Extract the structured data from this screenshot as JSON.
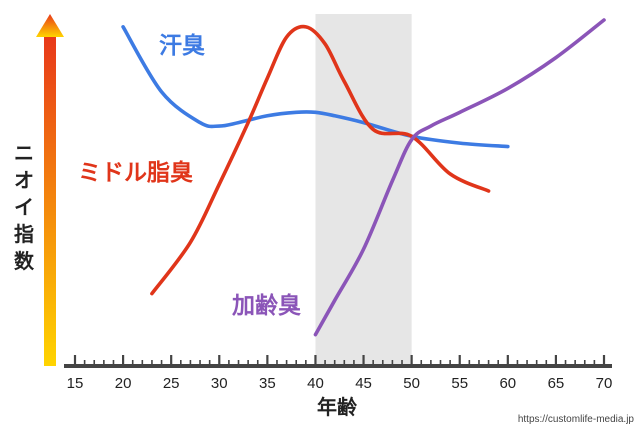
{
  "chart_data": {
    "type": "line",
    "title": "",
    "xlabel": "年齢",
    "ylabel": "ニオイ指数",
    "xlim": [
      15,
      70
    ],
    "ylim": [
      0,
      100
    ],
    "x_ticks": [
      15,
      20,
      25,
      30,
      35,
      40,
      45,
      50,
      55,
      60,
      65,
      70
    ],
    "grid": false,
    "highlight_band": {
      "from": 40,
      "to": 50,
      "color": "#e6e6e6"
    },
    "y_arrow_gradient": [
      "#ffd400",
      "#e8381a"
    ],
    "series": [
      {
        "name": "汗臭",
        "color": "#3d7be3",
        "x": [
          20,
          24,
          28,
          30,
          32,
          35,
          38,
          40,
          42,
          45,
          50,
          55,
          60
        ],
        "y": [
          98,
          79,
          70,
          69,
          70,
          72,
          73,
          73,
          72,
          70,
          66,
          64,
          63
        ]
      },
      {
        "name": "ミドル脂臭",
        "color": "#e0351a",
        "x": [
          23,
          27,
          30,
          33,
          35,
          37,
          39,
          41,
          43,
          46,
          50,
          54,
          58
        ],
        "y": [
          20,
          35,
          52,
          70,
          83,
          95,
          98,
          93,
          82,
          68,
          66,
          55,
          50
        ]
      },
      {
        "name": "加齢臭",
        "color": "#8b55b8",
        "x": [
          40,
          42,
          45,
          48,
          50,
          52,
          55,
          60,
          65,
          70
        ],
        "y": [
          8,
          18,
          33,
          53,
          65,
          69,
          73,
          80,
          89,
          100
        ]
      }
    ],
    "source_text": "https://customlife-media.jp"
  }
}
